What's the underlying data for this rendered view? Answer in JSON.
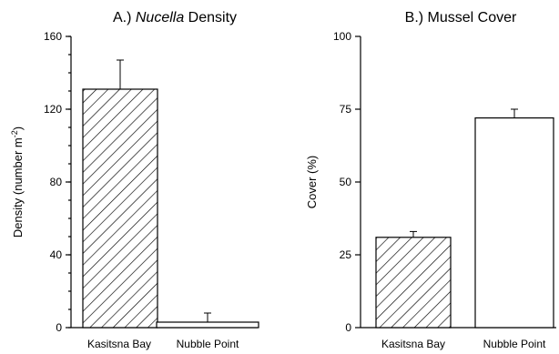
{
  "chart_data": [
    {
      "type": "bar",
      "title_prefix": "A.) ",
      "title_italic": "Nucella",
      "title_suffix": " Density",
      "ylabel_main": "Density (number m",
      "ylabel_sup": "-2",
      "ylabel_end": ")",
      "categories": [
        "Kasitsna Bay",
        "Nubble Point"
      ],
      "values": [
        131,
        3
      ],
      "errors": [
        16,
        5
      ],
      "fills": [
        "hatched",
        "white"
      ],
      "ylim": [
        0,
        160
      ],
      "yticks": [
        "0",
        "40",
        "80",
        "120",
        "160"
      ],
      "ytick_values": [
        0,
        40,
        80,
        120,
        160
      ],
      "minor_step": 10
    },
    {
      "type": "bar",
      "title": "B.) Mussel Cover",
      "ylabel": "Cover (%)",
      "categories": [
        "Kasitsna Bay",
        "Nubble Point"
      ],
      "values": [
        31,
        72
      ],
      "errors": [
        2,
        3
      ],
      "fills": [
        "hatched",
        "white"
      ],
      "ylim": [
        0,
        100
      ],
      "yticks": [
        "0",
        "25",
        "50",
        "75",
        "100"
      ],
      "ytick_values": [
        0,
        25,
        50,
        75,
        100
      ]
    }
  ]
}
